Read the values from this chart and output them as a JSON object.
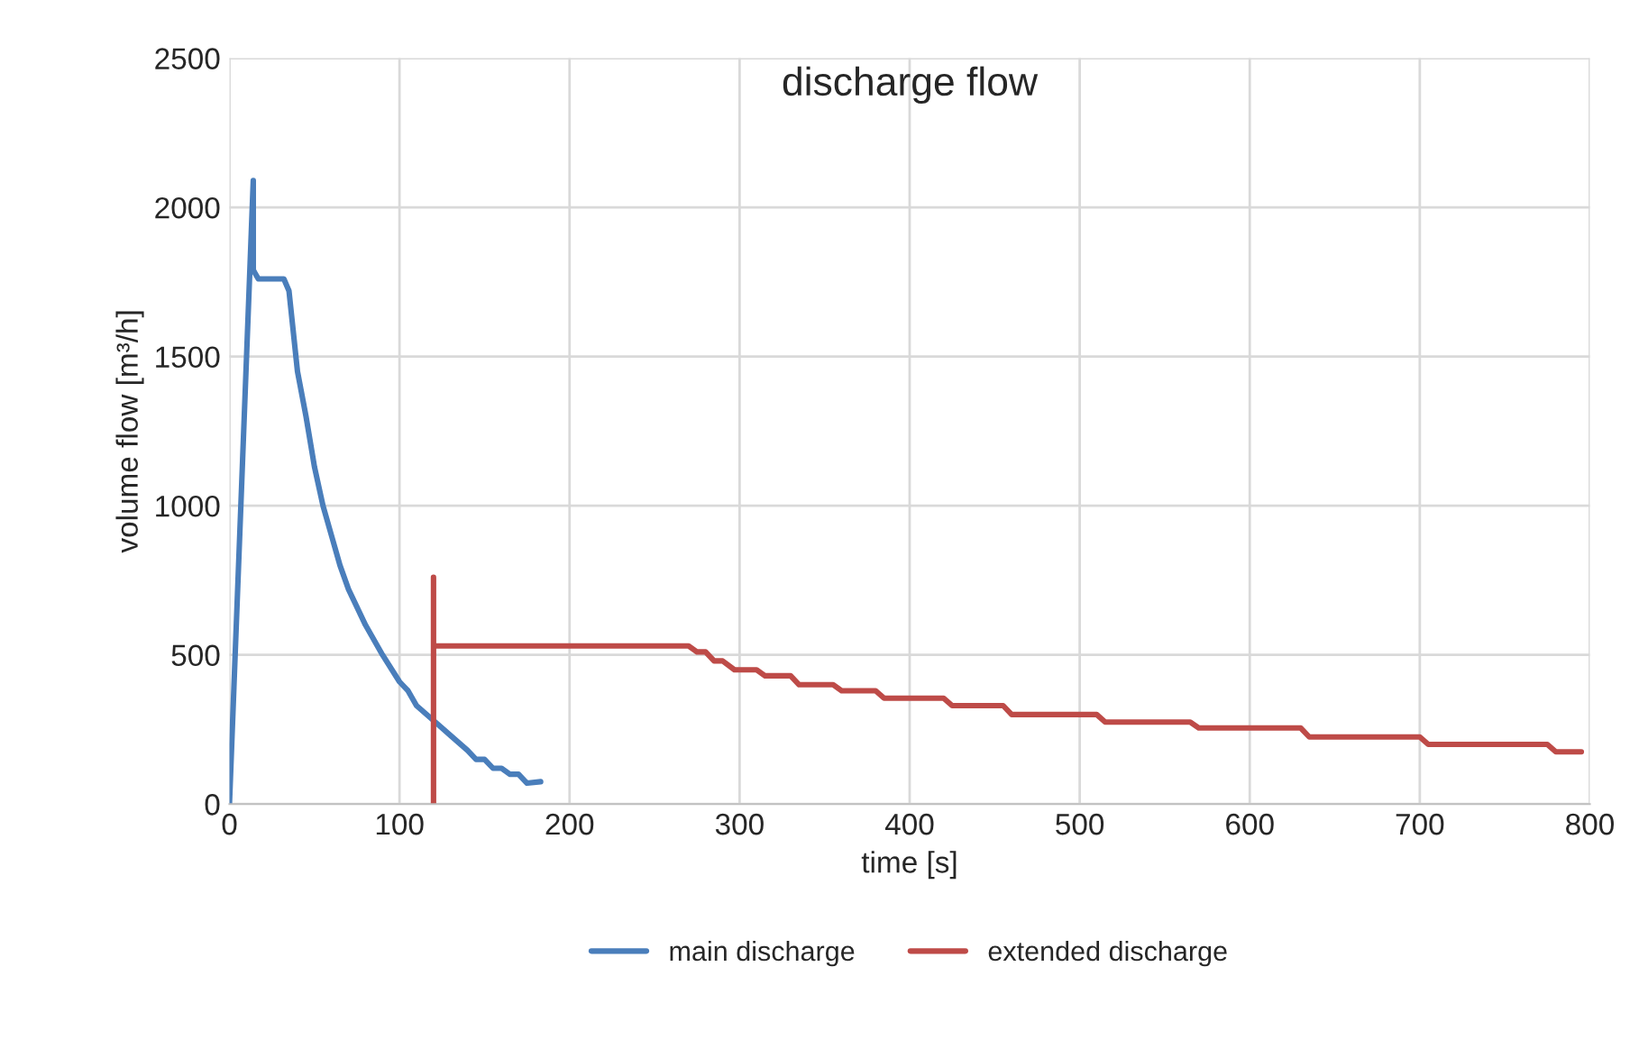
{
  "chart_data": {
    "type": "line",
    "title": "discharge flow",
    "xlabel": "time [s]",
    "ylabel": "volume flow [m³/h]",
    "xlim": [
      0,
      800
    ],
    "xticks": [
      0,
      100,
      200,
      300,
      400,
      500,
      600,
      700,
      800
    ],
    "ylim": [
      0,
      2500
    ],
    "yticks": [
      0,
      500,
      1000,
      1500,
      2000,
      2500
    ],
    "grid": true,
    "legend": "bottom",
    "marker": "none",
    "line_style": "solid",
    "series": [
      {
        "name": "main discharge",
        "color": "#4a7ebb",
        "x": [
          0,
          14,
          14,
          15,
          17,
          25,
          32,
          35,
          40,
          45,
          50,
          55,
          60,
          65,
          70,
          80,
          90,
          100,
          105,
          110,
          120,
          130,
          140,
          145,
          150,
          155,
          160,
          165,
          170,
          175,
          183
        ],
        "values": [
          0,
          2090,
          1790,
          1780,
          1760,
          1760,
          1760,
          1720,
          1450,
          1300,
          1130,
          1000,
          900,
          800,
          720,
          600,
          500,
          410,
          380,
          330,
          280,
          230,
          180,
          150,
          150,
          120,
          120,
          100,
          100,
          70,
          75
        ]
      },
      {
        "name": "extended discharge",
        "color": "#be4b48",
        "x": [
          120,
          120,
          120,
          270,
          275,
          280,
          285,
          290,
          297,
          310,
          315,
          330,
          335,
          355,
          360,
          380,
          385,
          420,
          425,
          455,
          460,
          510,
          515,
          565,
          570,
          630,
          635,
          700,
          705,
          775,
          780,
          795
        ],
        "values": [
          0,
          760,
          530,
          530,
          510,
          510,
          480,
          480,
          450,
          450,
          430,
          430,
          400,
          400,
          380,
          380,
          355,
          355,
          330,
          330,
          300,
          300,
          275,
          275,
          255,
          255,
          225,
          225,
          200,
          200,
          175,
          175
        ]
      }
    ]
  }
}
